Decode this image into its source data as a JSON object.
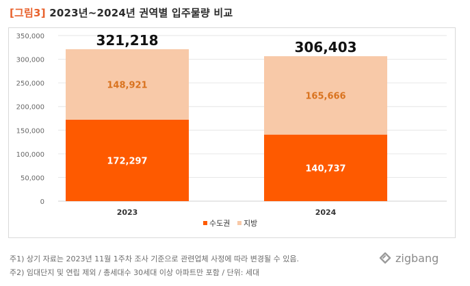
{
  "title": {
    "tag": "[그림3]",
    "text": "2023년~2024년 권역별 입주물량 비교"
  },
  "chart_data": {
    "type": "bar",
    "stacked": true,
    "categories": [
      "2023",
      "2024"
    ],
    "series": [
      {
        "name": "수도권",
        "values": [
          172297,
          140737
        ],
        "color": "#fe5a00",
        "labels": [
          "172,297",
          "140,737"
        ],
        "label_color": "#ffffff"
      },
      {
        "name": "지방",
        "values": [
          148921,
          165666
        ],
        "color": "#f8c9a8",
        "labels": [
          "148,921",
          "165,666"
        ],
        "label_color": "#d9731f"
      }
    ],
    "totals": [
      "321,218",
      "306,403"
    ],
    "ylim": [
      0,
      350000
    ],
    "yticks": [
      0,
      50000,
      100000,
      150000,
      200000,
      250000,
      300000,
      350000
    ],
    "ytick_labels": [
      "0",
      "50,000",
      "100,000",
      "150,000",
      "200,000",
      "250,000",
      "300,000",
      "350,000"
    ],
    "grid": true,
    "legend_position": "bottom"
  },
  "notes": [
    "주1) 상기 자료는 2023년 11월 1주차 조사 기준으로 관련업체 사정에 따라 변경될 수 있음.",
    "주2) 임대단지 및 연립 제외 / 총세대수 30세대 이상 아파트만 포함 / 단위: 세대"
  ],
  "brand": {
    "name": "zigbang",
    "icon": "zigbang-logo-icon"
  }
}
